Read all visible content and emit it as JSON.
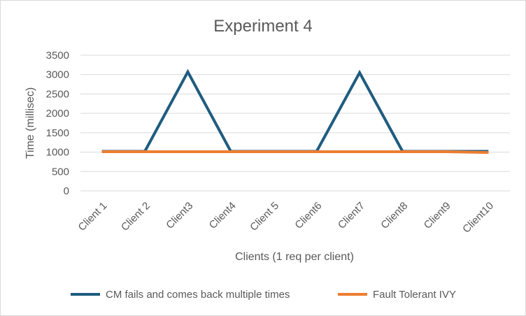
{
  "chart_data": {
    "type": "line",
    "title": "Experiment 4",
    "xlabel": "Clients (1 req per client)",
    "ylabel": "Time (millisec)",
    "categories": [
      "Client 1",
      "Client 2",
      "Client3",
      "Client4",
      "Client 5",
      "Client6",
      "Client7",
      "Client8",
      "Client9",
      "Client10"
    ],
    "ylim": [
      0,
      3500
    ],
    "yticks": [
      "0",
      "500",
      "1000",
      "1500",
      "2000",
      "2500",
      "3000",
      "3500"
    ],
    "grid": true,
    "legend_position": "bottom",
    "series": [
      {
        "name": "CM fails and comes back multiple times",
        "color": "#1f5c7f",
        "values": [
          1020,
          1020,
          3070,
          1020,
          1020,
          1020,
          3050,
          1020,
          1020,
          1020
        ]
      },
      {
        "name": "Fault Tolerant IVY",
        "color": "#ed7d31",
        "values": [
          1010,
          1010,
          1010,
          1010,
          1010,
          1010,
          1010,
          1010,
          1010,
          990
        ]
      }
    ]
  }
}
